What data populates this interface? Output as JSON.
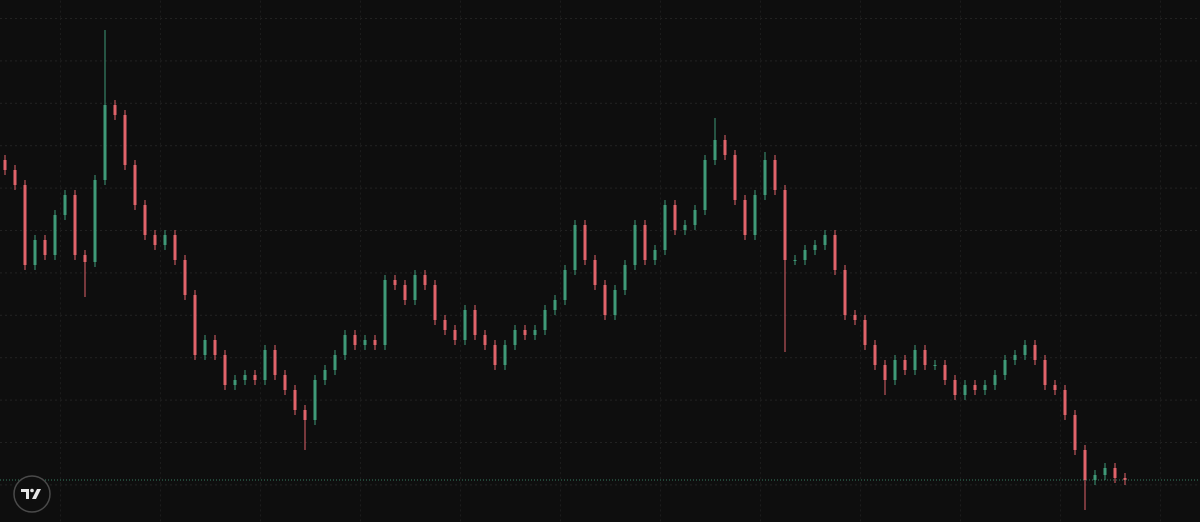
{
  "chart_data": {
    "type": "candlestick",
    "up_color": "#3f9a78",
    "down_color": "#e0636a",
    "ylim": [
      0,
      522
    ],
    "series": [
      {
        "open": [
          362,
          352,
          337,
          257,
          282,
          267,
          307,
          327,
          267,
          260,
          342,
          417,
          407,
          357,
          317,
          287,
          277,
          287,
          262,
          227,
          167,
          182,
          167,
          137,
          142,
          147,
          142,
          172,
          147,
          132,
          112,
          102,
          142,
          152,
          167,
          187,
          177,
          182,
          177,
          242,
          237,
          222,
          247,
          237,
          202,
          192,
          182,
          212,
          187,
          177,
          157,
          177,
          192,
          187,
          192,
          212,
          222,
          252,
          297,
          262,
          237,
          207,
          232,
          257,
          297,
          262,
          272,
          317,
          292,
          297,
          312,
          362,
          382,
          367,
          322,
          287,
          327,
          362,
          332,
          262,
          262,
          272,
          277,
          287,
          252,
          207,
          202,
          177,
          157,
          142,
          162,
          152,
          172,
          157,
          157,
          142,
          127,
          137,
          132,
          137,
          147,
          162,
          167,
          177,
          162,
          137,
          132,
          107,
          72,
          42,
          47,
          54,
          44
        ],
        "high": [
          367,
          357,
          342,
          287,
          287,
          312,
          332,
          332,
          272,
          347,
          492,
          422,
          412,
          362,
          322,
          292,
          292,
          292,
          267,
          232,
          187,
          187,
          172,
          147,
          152,
          152,
          177,
          177,
          152,
          137,
          117,
          147,
          157,
          172,
          192,
          192,
          187,
          187,
          247,
          247,
          242,
          252,
          252,
          242,
          207,
          197,
          217,
          217,
          192,
          182,
          182,
          197,
          197,
          197,
          217,
          227,
          257,
          302,
          302,
          267,
          242,
          237,
          262,
          302,
          302,
          277,
          322,
          322,
          302,
          317,
          367,
          404,
          387,
          372,
          327,
          332,
          370,
          367,
          337,
          267,
          277,
          282,
          292,
          292,
          257,
          212,
          207,
          182,
          162,
          167,
          167,
          177,
          177,
          162,
          162,
          147,
          142,
          142,
          142,
          152,
          167,
          172,
          182,
          182,
          167,
          142,
          137,
          112,
          77,
          52,
          59,
          59,
          49
        ],
        "low": [
          347,
          332,
          252,
          252,
          262,
          262,
          302,
          262,
          225,
          255,
          337,
          402,
          352,
          312,
          282,
          272,
          272,
          257,
          222,
          162,
          162,
          162,
          132,
          132,
          137,
          137,
          137,
          142,
          127,
          107,
          72,
          97,
          137,
          147,
          162,
          172,
          172,
          172,
          172,
          232,
          217,
          217,
          232,
          197,
          187,
          177,
          177,
          182,
          172,
          152,
          152,
          172,
          182,
          182,
          187,
          207,
          217,
          247,
          257,
          232,
          202,
          202,
          227,
          252,
          257,
          257,
          267,
          287,
          287,
          292,
          307,
          357,
          362,
          317,
          282,
          282,
          322,
          327,
          170,
          257,
          257,
          267,
          272,
          247,
          202,
          197,
          172,
          152,
          127,
          137,
          147,
          147,
          152,
          152,
          137,
          122,
          122,
          127,
          127,
          132,
          142,
          157,
          162,
          157,
          132,
          127,
          102,
          67,
          12,
          37,
          42,
          39,
          37
        ],
        "close": [
          352,
          337,
          257,
          282,
          267,
          307,
          327,
          267,
          260,
          342,
          417,
          407,
          357,
          317,
          287,
          277,
          287,
          262,
          227,
          167,
          182,
          167,
          137,
          142,
          147,
          142,
          172,
          147,
          132,
          112,
          102,
          142,
          152,
          167,
          187,
          177,
          182,
          177,
          242,
          237,
          222,
          247,
          237,
          202,
          192,
          182,
          212,
          187,
          177,
          157,
          177,
          192,
          187,
          192,
          212,
          222,
          252,
          297,
          262,
          237,
          207,
          232,
          257,
          297,
          262,
          272,
          317,
          292,
          297,
          312,
          362,
          382,
          367,
          322,
          287,
          327,
          362,
          332,
          262,
          262,
          272,
          277,
          287,
          252,
          207,
          202,
          177,
          157,
          142,
          162,
          152,
          172,
          157,
          157,
          142,
          127,
          137,
          132,
          137,
          147,
          162,
          167,
          177,
          162,
          137,
          132,
          107,
          72,
          42,
          47,
          54,
          44,
          42
        ]
      }
    ]
  }
}
